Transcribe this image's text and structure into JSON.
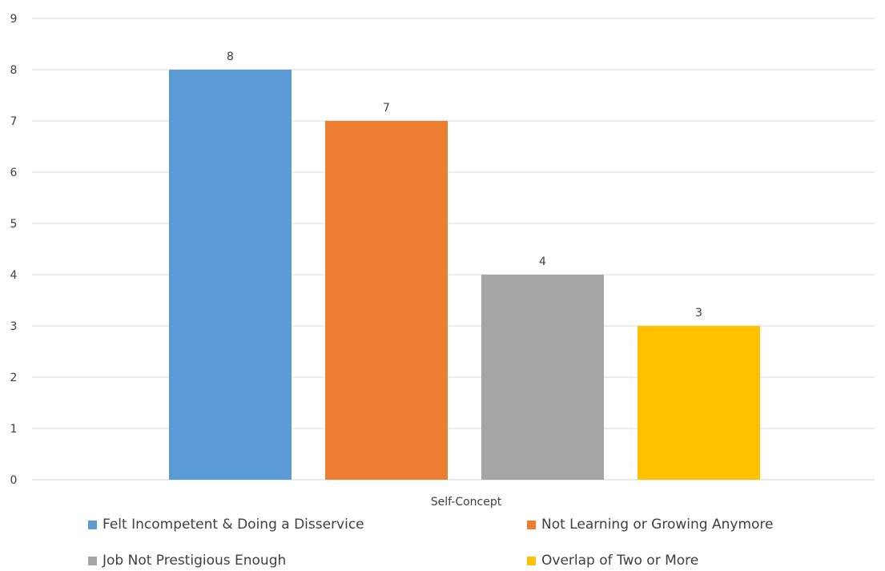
{
  "chart_data": {
    "type": "bar",
    "categories": [
      "Self-Concept"
    ],
    "series": [
      {
        "name": "Felt Incompetent & Doing a Disservice",
        "values": [
          8
        ],
        "color": "#5b9bd5"
      },
      {
        "name": "Not Learning or Growing Anymore",
        "values": [
          7
        ],
        "color": "#ed7d31"
      },
      {
        "name": "Job Not Prestigious Enough",
        "values": [
          4
        ],
        "color": "#a5a5a5"
      },
      {
        "name": "Overlap of Two or More",
        "values": [
          3
        ],
        "color": "#ffc000"
      }
    ],
    "y_ticks": [
      "0",
      "1",
      "2",
      "3",
      "4",
      "5",
      "6",
      "7",
      "8",
      "9"
    ],
    "ylim": [
      0,
      9
    ],
    "grid": true,
    "data_labels": true,
    "legend_position": "bottom"
  }
}
